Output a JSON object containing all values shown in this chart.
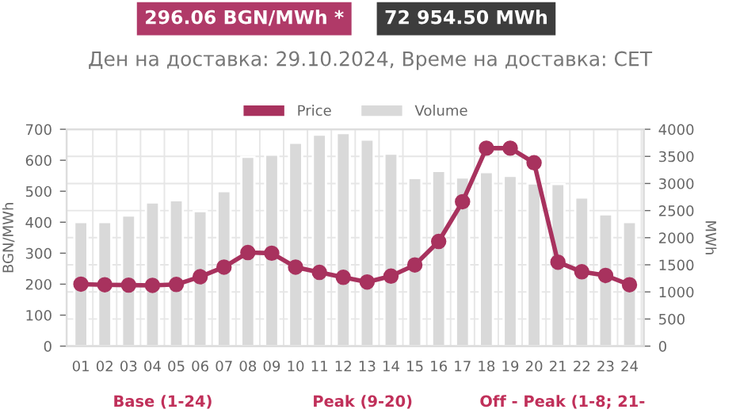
{
  "chart_data": {
    "type": "bar",
    "title": "Ден на доставка: 29.10.2024, Време на доставка: CET",
    "annotations": [
      "296.06 BGN/MWh *",
      "72 954.50 MWh",
      "Base (1-24)",
      "Peak (9-20)",
      "Off - Peak (1-8; 21-"
    ],
    "categories": [
      "01",
      "02",
      "03",
      "04",
      "05",
      "06",
      "07",
      "08",
      "09",
      "10",
      "11",
      "12",
      "13",
      "14",
      "15",
      "16",
      "17",
      "18",
      "19",
      "20",
      "21",
      "22",
      "23",
      "24"
    ],
    "series": [
      {
        "name": "Price",
        "type": "line",
        "color": "#a8325e",
        "values": [
          200,
          198,
          197,
          196,
          199,
          224,
          255,
          302,
          300,
          255,
          238,
          222,
          207,
          226,
          262,
          338,
          466,
          639,
          639,
          592,
          271,
          240,
          228,
          198
        ]
      },
      {
        "name": "Volume",
        "axis": "y2",
        "color": "#d9d9d9",
        "values": [
          2290,
          2290,
          2410,
          2650,
          2690,
          2490,
          2860,
          3490,
          3530,
          3750,
          3900,
          3930,
          3810,
          3550,
          3100,
          3230,
          3110,
          3210,
          3140,
          3000,
          2990,
          2740,
          2430,
          2290
        ]
      }
    ],
    "ylabel": "BGN/MWh",
    "y2label": "MWh",
    "ylim": [
      0,
      700
    ],
    "yticks": [
      0,
      100,
      200,
      300,
      400,
      500,
      600,
      700
    ],
    "y2lim": [
      0,
      4000
    ],
    "y2ticks": [
      0,
      500,
      1000,
      1500,
      2000,
      2500,
      3000,
      3500,
      4000
    ],
    "grid": true,
    "legend": "top",
    "marker": "circle",
    "line_style": "solid"
  }
}
